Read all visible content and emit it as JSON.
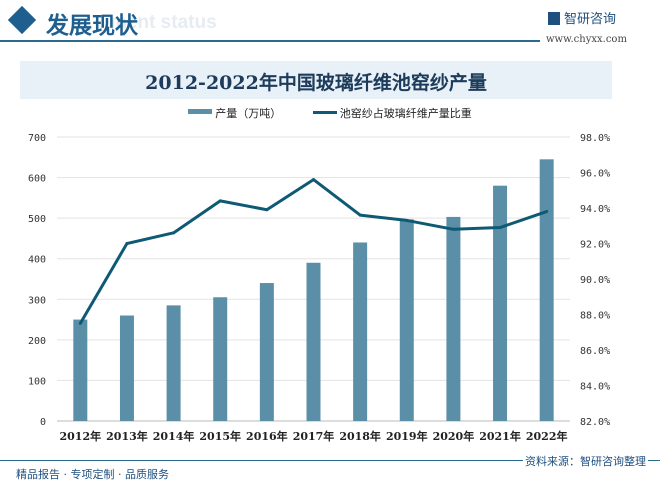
{
  "header": {
    "title": "发展现状",
    "subtitle": "ment status",
    "logo": "智研咨询",
    "site": "www.chyxx.com"
  },
  "footer": {
    "left": "精品报告 · 专项定制 · 品质服务",
    "source": "资料来源：智研咨询整理"
  },
  "chart_data": {
    "type": "bar+line",
    "title": "2012-2022年中国玻璃纤维池窑纱产量",
    "categories": [
      "2012年",
      "2013年",
      "2014年",
      "2015年",
      "2016年",
      "2017年",
      "2018年",
      "2019年",
      "2020年",
      "2021年",
      "2022年"
    ],
    "series": [
      {
        "name": "产量（万吨）",
        "type": "bar",
        "axis": "left",
        "color": "#5b8fa8",
        "values": [
          250,
          260,
          285,
          305,
          340,
          390,
          440,
          497,
          503,
          580,
          645
        ]
      },
      {
        "name": "池窑纱占玻璃纤维产量比重",
        "type": "line",
        "axis": "right",
        "color": "#0e5a75",
        "values": [
          87.5,
          92.0,
          92.6,
          94.4,
          93.9,
          95.6,
          93.6,
          93.3,
          92.8,
          92.9,
          93.8
        ]
      }
    ],
    "yleft": {
      "range": [
        0,
        700
      ],
      "ticks": [
        "0",
        "100",
        "200",
        "300",
        "400",
        "500",
        "600",
        "700"
      ]
    },
    "yright": {
      "range": [
        82,
        98
      ],
      "ticks": [
        "82.0%",
        "84.0%",
        "86.0%",
        "88.0%",
        "90.0%",
        "92.0%",
        "94.0%",
        "96.0%",
        "98.0%"
      ]
    },
    "grid": true,
    "legend": "top"
  }
}
